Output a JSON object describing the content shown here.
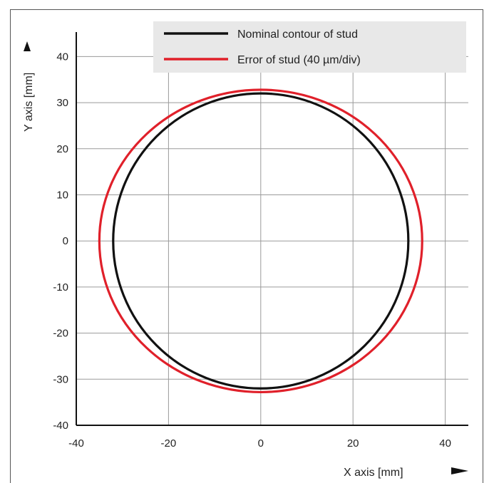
{
  "chart_data": {
    "type": "line",
    "xlabel": "X axis [mm]",
    "ylabel": "Y axis [mm]",
    "xlim": [
      -40,
      45
    ],
    "ylim": [
      -40,
      47
    ],
    "x_ticks": [
      -40,
      -20,
      0,
      20,
      40
    ],
    "y_ticks": [
      -40,
      -30,
      -20,
      -10,
      0,
      10,
      20,
      30,
      40
    ],
    "grid": true,
    "legend_position": "top-right",
    "series": [
      {
        "name": "Nominal contour of stud",
        "color": "#111111",
        "shape": "circle",
        "center": [
          0,
          0
        ],
        "radius_x": 32,
        "radius_y": 32
      },
      {
        "name": "Error of stud (40 µm/div)",
        "color": "#e0202a",
        "shape": "ellipse",
        "center": [
          0,
          0
        ],
        "radius_x": 35,
        "radius_y": 32.8
      }
    ]
  }
}
